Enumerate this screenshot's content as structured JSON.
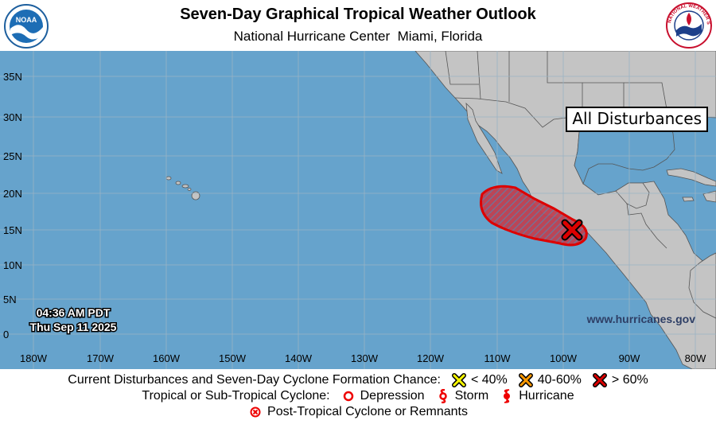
{
  "header": {
    "title": "Seven-Day Graphical Tropical Weather Outlook",
    "subtitle": "National Hurricane Center  Miami, Florida",
    "left_logo": {
      "icon": "noaa-logo-icon",
      "text": "NOAA"
    },
    "right_logo": {
      "icon": "nws-logo-icon",
      "text": "NATIONAL WEATHER SERVICE"
    }
  },
  "map": {
    "overlay_label": "All Disturbances",
    "latitude_labels": [
      "35N",
      "30N",
      "25N",
      "20N",
      "15N",
      "10N",
      "5N",
      "0"
    ],
    "longitude_labels": [
      "180W",
      "170W",
      "160W",
      "150W",
      "140W",
      "130W",
      "120W",
      "110W",
      "100W",
      "90W",
      "80W"
    ],
    "timestamp_line1": "04:36 AM PDT",
    "timestamp_line2": "Thu Sep 11 2025",
    "website": "www.hurricanes.gov",
    "colors": {
      "ocean": "#66a3cc",
      "land": "#c4c4c4",
      "grid": "#9ab3c4",
      "disturbance_outline": "#dd0000",
      "disturbance_hatch": "#7a6b8e",
      "high_chance_marker": "#dd0000"
    },
    "disturbance": {
      "formation_chance": "> 60%",
      "marker_icon": "red-x-icon"
    }
  },
  "legend": {
    "row1_label": "Current Disturbances and Seven-Day Cyclone Formation Chance:",
    "low": "< 40%",
    "medium": "40-60%",
    "high": "> 60%",
    "row2_label": "Tropical or Sub-Tropical Cyclone:",
    "depression": "Depression",
    "storm": "Storm",
    "hurricane": "Hurricane",
    "row3_label": "Post-Tropical Cyclone or Remnants",
    "colors": {
      "low": "#ffff00",
      "medium": "#ff9900",
      "high": "#dd0000",
      "cyclone": "#ee0000"
    }
  }
}
